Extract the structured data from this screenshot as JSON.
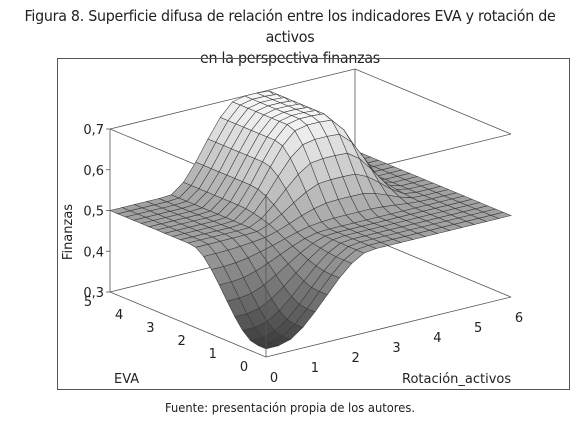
{
  "figure": {
    "title_line1": "Figura 8. Superficie difusa de relación entre los indicadores EVA y rotación de activos",
    "title_line2": "en la perspectiva finanzas",
    "source": "Fuente: presentación propia de los autores."
  },
  "chart_data": {
    "type": "surface",
    "xlabel": "Rotación_activos",
    "ylabel": "EVA",
    "zlabel": "Finanzas",
    "x_ticks": [
      "0",
      "1",
      "2",
      "3",
      "4",
      "5",
      "6"
    ],
    "y_ticks": [
      "0",
      "1",
      "2",
      "3",
      "4",
      "5"
    ],
    "z_ticks": [
      "0,3",
      "0,4",
      "0,5",
      "0,6",
      "0,7"
    ],
    "xlim": [
      0,
      6
    ],
    "ylim": [
      0,
      5
    ],
    "zlim": [
      0.3,
      0.7
    ],
    "x_grid": [
      0,
      0.3,
      0.6,
      0.9,
      1.2,
      1.5,
      1.8,
      2.1,
      2.4,
      2.7,
      3.0,
      3.3,
      3.6,
      3.9,
      4.2,
      4.5,
      4.8,
      5.1,
      5.4,
      5.7,
      6.0
    ],
    "y_grid": [
      0,
      0.25,
      0.5,
      0.75,
      1.0,
      1.25,
      1.5,
      1.75,
      2.0,
      2.25,
      2.5,
      2.75,
      3.0,
      3.25,
      3.5,
      3.75,
      4.0,
      4.25,
      4.5,
      4.75,
      5.0
    ],
    "z_corner_min": 0.32,
    "z_plateau": 0.5,
    "z_max": 0.7,
    "grid": true,
    "colormap": "gray"
  }
}
